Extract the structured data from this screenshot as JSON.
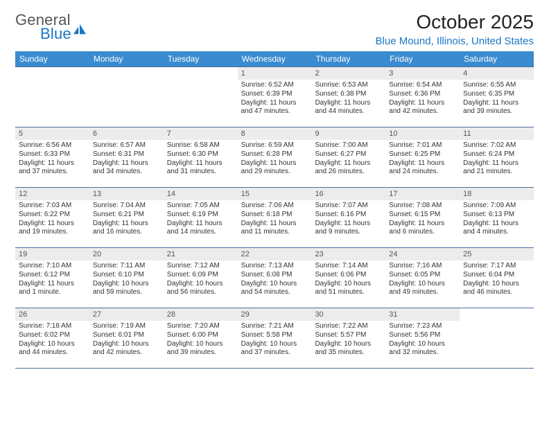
{
  "logo": {
    "word1": "General",
    "word2": "Blue",
    "brand_gray": "#6a6a6a",
    "brand_blue": "#1976c4"
  },
  "title": "October 2025",
  "location": "Blue Mound, Illinois, United States",
  "colors": {
    "header_bg": "#3a8bcf",
    "header_text": "#ffffff",
    "daynum_bg": "#ececec",
    "rule": "#4b6e9e"
  },
  "day_names": [
    "Sunday",
    "Monday",
    "Tuesday",
    "Wednesday",
    "Thursday",
    "Friday",
    "Saturday"
  ],
  "weeks": [
    [
      {
        "n": "",
        "empty": true
      },
      {
        "n": "",
        "empty": true
      },
      {
        "n": "",
        "empty": true
      },
      {
        "n": "1",
        "sr": "Sunrise: 6:52 AM",
        "ss": "Sunset: 6:39 PM",
        "dl1": "Daylight: 11 hours",
        "dl2": "and 47 minutes."
      },
      {
        "n": "2",
        "sr": "Sunrise: 6:53 AM",
        "ss": "Sunset: 6:38 PM",
        "dl1": "Daylight: 11 hours",
        "dl2": "and 44 minutes."
      },
      {
        "n": "3",
        "sr": "Sunrise: 6:54 AM",
        "ss": "Sunset: 6:36 PM",
        "dl1": "Daylight: 11 hours",
        "dl2": "and 42 minutes."
      },
      {
        "n": "4",
        "sr": "Sunrise: 6:55 AM",
        "ss": "Sunset: 6:35 PM",
        "dl1": "Daylight: 11 hours",
        "dl2": "and 39 minutes."
      }
    ],
    [
      {
        "n": "5",
        "sr": "Sunrise: 6:56 AM",
        "ss": "Sunset: 6:33 PM",
        "dl1": "Daylight: 11 hours",
        "dl2": "and 37 minutes."
      },
      {
        "n": "6",
        "sr": "Sunrise: 6:57 AM",
        "ss": "Sunset: 6:31 PM",
        "dl1": "Daylight: 11 hours",
        "dl2": "and 34 minutes."
      },
      {
        "n": "7",
        "sr": "Sunrise: 6:58 AM",
        "ss": "Sunset: 6:30 PM",
        "dl1": "Daylight: 11 hours",
        "dl2": "and 31 minutes."
      },
      {
        "n": "8",
        "sr": "Sunrise: 6:59 AM",
        "ss": "Sunset: 6:28 PM",
        "dl1": "Daylight: 11 hours",
        "dl2": "and 29 minutes."
      },
      {
        "n": "9",
        "sr": "Sunrise: 7:00 AM",
        "ss": "Sunset: 6:27 PM",
        "dl1": "Daylight: 11 hours",
        "dl2": "and 26 minutes."
      },
      {
        "n": "10",
        "sr": "Sunrise: 7:01 AM",
        "ss": "Sunset: 6:25 PM",
        "dl1": "Daylight: 11 hours",
        "dl2": "and 24 minutes."
      },
      {
        "n": "11",
        "sr": "Sunrise: 7:02 AM",
        "ss": "Sunset: 6:24 PM",
        "dl1": "Daylight: 11 hours",
        "dl2": "and 21 minutes."
      }
    ],
    [
      {
        "n": "12",
        "sr": "Sunrise: 7:03 AM",
        "ss": "Sunset: 6:22 PM",
        "dl1": "Daylight: 11 hours",
        "dl2": "and 19 minutes."
      },
      {
        "n": "13",
        "sr": "Sunrise: 7:04 AM",
        "ss": "Sunset: 6:21 PM",
        "dl1": "Daylight: 11 hours",
        "dl2": "and 16 minutes."
      },
      {
        "n": "14",
        "sr": "Sunrise: 7:05 AM",
        "ss": "Sunset: 6:19 PM",
        "dl1": "Daylight: 11 hours",
        "dl2": "and 14 minutes."
      },
      {
        "n": "15",
        "sr": "Sunrise: 7:06 AM",
        "ss": "Sunset: 6:18 PM",
        "dl1": "Daylight: 11 hours",
        "dl2": "and 11 minutes."
      },
      {
        "n": "16",
        "sr": "Sunrise: 7:07 AM",
        "ss": "Sunset: 6:16 PM",
        "dl1": "Daylight: 11 hours",
        "dl2": "and 9 minutes."
      },
      {
        "n": "17",
        "sr": "Sunrise: 7:08 AM",
        "ss": "Sunset: 6:15 PM",
        "dl1": "Daylight: 11 hours",
        "dl2": "and 6 minutes."
      },
      {
        "n": "18",
        "sr": "Sunrise: 7:09 AM",
        "ss": "Sunset: 6:13 PM",
        "dl1": "Daylight: 11 hours",
        "dl2": "and 4 minutes."
      }
    ],
    [
      {
        "n": "19",
        "sr": "Sunrise: 7:10 AM",
        "ss": "Sunset: 6:12 PM",
        "dl1": "Daylight: 11 hours",
        "dl2": "and 1 minute."
      },
      {
        "n": "20",
        "sr": "Sunrise: 7:11 AM",
        "ss": "Sunset: 6:10 PM",
        "dl1": "Daylight: 10 hours",
        "dl2": "and 59 minutes."
      },
      {
        "n": "21",
        "sr": "Sunrise: 7:12 AM",
        "ss": "Sunset: 6:09 PM",
        "dl1": "Daylight: 10 hours",
        "dl2": "and 56 minutes."
      },
      {
        "n": "22",
        "sr": "Sunrise: 7:13 AM",
        "ss": "Sunset: 6:08 PM",
        "dl1": "Daylight: 10 hours",
        "dl2": "and 54 minutes."
      },
      {
        "n": "23",
        "sr": "Sunrise: 7:14 AM",
        "ss": "Sunset: 6:06 PM",
        "dl1": "Daylight: 10 hours",
        "dl2": "and 51 minutes."
      },
      {
        "n": "24",
        "sr": "Sunrise: 7:16 AM",
        "ss": "Sunset: 6:05 PM",
        "dl1": "Daylight: 10 hours",
        "dl2": "and 49 minutes."
      },
      {
        "n": "25",
        "sr": "Sunrise: 7:17 AM",
        "ss": "Sunset: 6:04 PM",
        "dl1": "Daylight: 10 hours",
        "dl2": "and 46 minutes."
      }
    ],
    [
      {
        "n": "26",
        "sr": "Sunrise: 7:18 AM",
        "ss": "Sunset: 6:02 PM",
        "dl1": "Daylight: 10 hours",
        "dl2": "and 44 minutes."
      },
      {
        "n": "27",
        "sr": "Sunrise: 7:19 AM",
        "ss": "Sunset: 6:01 PM",
        "dl1": "Daylight: 10 hours",
        "dl2": "and 42 minutes."
      },
      {
        "n": "28",
        "sr": "Sunrise: 7:20 AM",
        "ss": "Sunset: 6:00 PM",
        "dl1": "Daylight: 10 hours",
        "dl2": "and 39 minutes."
      },
      {
        "n": "29",
        "sr": "Sunrise: 7:21 AM",
        "ss": "Sunset: 5:58 PM",
        "dl1": "Daylight: 10 hours",
        "dl2": "and 37 minutes."
      },
      {
        "n": "30",
        "sr": "Sunrise: 7:22 AM",
        "ss": "Sunset: 5:57 PM",
        "dl1": "Daylight: 10 hours",
        "dl2": "and 35 minutes."
      },
      {
        "n": "31",
        "sr": "Sunrise: 7:23 AM",
        "ss": "Sunset: 5:56 PM",
        "dl1": "Daylight: 10 hours",
        "dl2": "and 32 minutes."
      },
      {
        "n": "",
        "empty": true
      }
    ]
  ]
}
